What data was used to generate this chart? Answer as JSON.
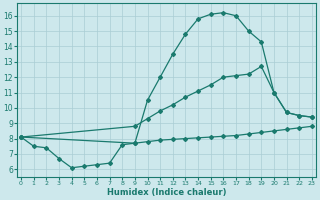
{
  "bg_color": "#cde8ec",
  "line_color": "#1a7a6e",
  "grid_color": "#aacdd4",
  "xlabel": "Humidex (Indice chaleur)",
  "x_ticks": [
    0,
    1,
    2,
    3,
    4,
    5,
    6,
    7,
    8,
    9,
    10,
    11,
    12,
    13,
    14,
    15,
    16,
    17,
    18,
    19,
    20,
    21,
    22,
    23
  ],
  "y_ticks": [
    6,
    7,
    8,
    9,
    10,
    11,
    12,
    13,
    14,
    15,
    16
  ],
  "xlim": [
    -0.3,
    23.3
  ],
  "ylim": [
    5.5,
    16.8
  ],
  "curve1_x": [
    0,
    1,
    2,
    3,
    4,
    5,
    6,
    7,
    8,
    9,
    10,
    11,
    12,
    13,
    14,
    15,
    16,
    17,
    18,
    19,
    20,
    21,
    22,
    23
  ],
  "curve1_y": [
    8.1,
    7.5,
    7.4,
    6.7,
    6.1,
    6.2,
    6.3,
    6.4,
    7.6,
    7.7,
    10.5,
    12.0,
    13.5,
    14.8,
    15.8,
    16.1,
    16.2,
    16.0,
    15.0,
    14.3,
    11.0,
    9.7,
    9.5,
    9.4
  ],
  "curve2_x": [
    0,
    9,
    10,
    11,
    12,
    13,
    14,
    15,
    16,
    17,
    18,
    19,
    20,
    21,
    22,
    23
  ],
  "curve2_y": [
    8.1,
    8.8,
    9.3,
    9.8,
    10.2,
    10.7,
    11.1,
    11.5,
    12.0,
    12.1,
    12.2,
    12.7,
    11.0,
    9.7,
    9.5,
    9.4
  ],
  "curve3_x": [
    0,
    9,
    10,
    11,
    12,
    13,
    14,
    15,
    16,
    17,
    18,
    19,
    20,
    21,
    22,
    23
  ],
  "curve3_y": [
    8.1,
    7.7,
    7.8,
    7.9,
    7.95,
    8.0,
    8.05,
    8.1,
    8.15,
    8.2,
    8.3,
    8.4,
    8.5,
    8.6,
    8.7,
    8.8
  ],
  "marker1_x": [
    0,
    1,
    2,
    3,
    4,
    5,
    6,
    7,
    8,
    9,
    10,
    11,
    12,
    13,
    14,
    15,
    16,
    17,
    18,
    19,
    20,
    21,
    22,
    23
  ],
  "marker1_y": [
    8.1,
    7.5,
    7.4,
    6.7,
    6.1,
    6.2,
    6.3,
    6.4,
    7.6,
    7.7,
    10.5,
    12.0,
    13.5,
    14.8,
    15.8,
    16.1,
    16.2,
    16.0,
    15.0,
    14.3,
    11.0,
    9.7,
    9.5,
    9.4
  ],
  "marker2_x": [
    0,
    9,
    10,
    11,
    12,
    13,
    14,
    15,
    16,
    17,
    18,
    19,
    20,
    21,
    22,
    23
  ],
  "marker2_y": [
    8.1,
    8.8,
    9.3,
    9.8,
    10.2,
    10.7,
    11.1,
    11.5,
    12.0,
    12.1,
    12.2,
    12.7,
    11.0,
    9.7,
    9.5,
    9.4
  ],
  "marker3_x": [
    0,
    9,
    10,
    11,
    12,
    13,
    14,
    15,
    16,
    17,
    18,
    19,
    20,
    21,
    22,
    23
  ],
  "marker3_y": [
    8.1,
    7.7,
    7.8,
    7.9,
    7.95,
    8.0,
    8.05,
    8.1,
    8.15,
    8.2,
    8.3,
    8.4,
    8.5,
    8.6,
    8.7,
    8.8
  ]
}
